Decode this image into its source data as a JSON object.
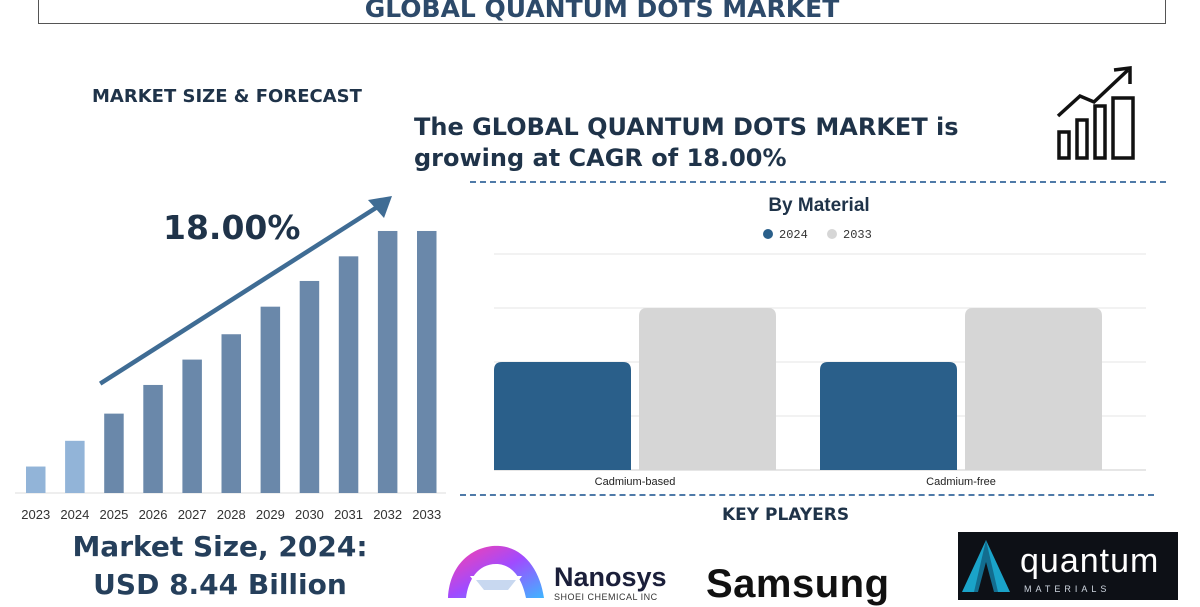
{
  "header": {
    "title": "GLOBAL QUANTUM DOTS MARKET"
  },
  "left_panel": {
    "section_label": "MARKET SIZE & FORECAST",
    "cagr_label": "18.00%",
    "market_size_line1": "Market Size, 2024:",
    "market_size_line2": "USD 8.44 Billion"
  },
  "headline": {
    "line1": "The GLOBAL QUANTUM DOTS MARKET is",
    "line2": "growing at CAGR of 18.00%"
  },
  "key_players": {
    "label": "KEY PLAYERS",
    "logos": [
      {
        "name": "Nanosys",
        "subtitle": "SHOEI CHEMICAL INC"
      },
      {
        "name": "Samsung"
      },
      {
        "name": "quantum",
        "subtitle": "MATERIALS"
      }
    ]
  },
  "colors": {
    "navy": "#1f3349",
    "bar_blue": "#6a88aa",
    "bar_light": "#92b4d8",
    "dark_bar": "#2a5f8a",
    "grey_bar": "#d6d6d6",
    "arrow": "#3f6c94"
  },
  "chart_data": [
    {
      "type": "bar",
      "categories": [
        "2023",
        "2024",
        "2025",
        "2026",
        "2027",
        "2028",
        "2029",
        "2030",
        "2031",
        "2032",
        "2033"
      ],
      "values": [
        7.2,
        14.2,
        21.6,
        29.4,
        36.3,
        43.2,
        50.7,
        57.7,
        64.4,
        71.3,
        71.3
      ],
      "title": "",
      "xlabel": "",
      "ylabel": "",
      "ylim": [
        0,
        80
      ],
      "grid": false,
      "trend_arrow": true
    },
    {
      "type": "bar",
      "title": "By Material",
      "categories": [
        "Cadmium-based",
        "Cadmium-free"
      ],
      "series": [
        {
          "name": "2024",
          "values": [
            4,
            4
          ],
          "color": "#2a5f8a"
        },
        {
          "name": "2033",
          "values": [
            6,
            6
          ],
          "color": "#d6d6d6"
        }
      ],
      "ylim": [
        0,
        8
      ],
      "grid": true,
      "legend": "top-center"
    }
  ]
}
